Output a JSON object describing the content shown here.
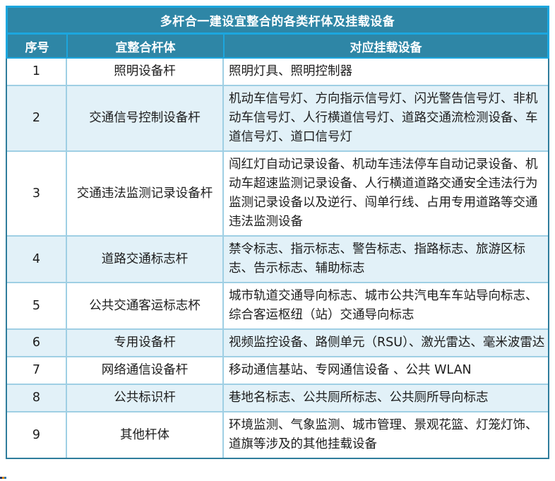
{
  "title": "多杆合一建设宜整合的各类杆体及挂载设备",
  "table": {
    "headers": [
      "序号",
      "宜整合杆体",
      "对应挂载设备"
    ],
    "rows": [
      {
        "no": "1",
        "pole": "照明设备杆",
        "devices": "照明灯具、照明控制器"
      },
      {
        "no": "2",
        "pole": "交通信号控制设备杆",
        "devices": "机动车信号灯、方向指示信号灯、闪光警告信号灯、非机动车信号灯、人行横道信号灯、道路交通流检测设备、车道信号灯、道口信号灯"
      },
      {
        "no": "3",
        "pole": "交通违法监测记录设备杆",
        "devices": "闯红灯自动记录设备、机动车违法停车自动记录设备、机动车超速监测记录设备、人行横道道路交通安全违法行为监测记录设备以及逆行、闯单行线、占用专用道路等交通违法监测设备"
      },
      {
        "no": "4",
        "pole": "道路交通标志杆",
        "devices": "禁令标志、指示标志、警告标志、指路标志、旅游区标志、告示标志、辅助标志"
      },
      {
        "no": "5",
        "pole": "公共交通客运标志杯",
        "devices": "城市轨道交通导向标志、城市公共汽电车车站导向标志、综合客运枢纽（站）交通导向标志"
      },
      {
        "no": "6",
        "pole": "专用设备杆",
        "devices": "视频监控设备、路侧单元（RSU）、激光雷达、毫米波雷达"
      },
      {
        "no": "7",
        "pole": "网络通信设备杆",
        "devices": "移动通信基站、专网通信设备 、公共 WLAN"
      },
      {
        "no": "8",
        "pole": "公共标识杆",
        "devices": "巷地名标志、公共厕所标志、公共厕所导向标志"
      },
      {
        "no": "9",
        "pole": "其他杆体",
        "devices": "环境监测、气象监测、城市管理、景观花篮、灯笼灯饰、道旗等涉及的其他挂载设备"
      }
    ]
  },
  "colors": {
    "title_bg": "#2E86A6",
    "header_bg": "#2E86A6",
    "accent_border": "#1CA6DE",
    "body_border": "#2F7D9C",
    "grid_line": "#9FCFE4",
    "stripe_bg": "#E2F1F8",
    "header_text": "#FFFFFF",
    "body_text": "#1C1C1C"
  }
}
